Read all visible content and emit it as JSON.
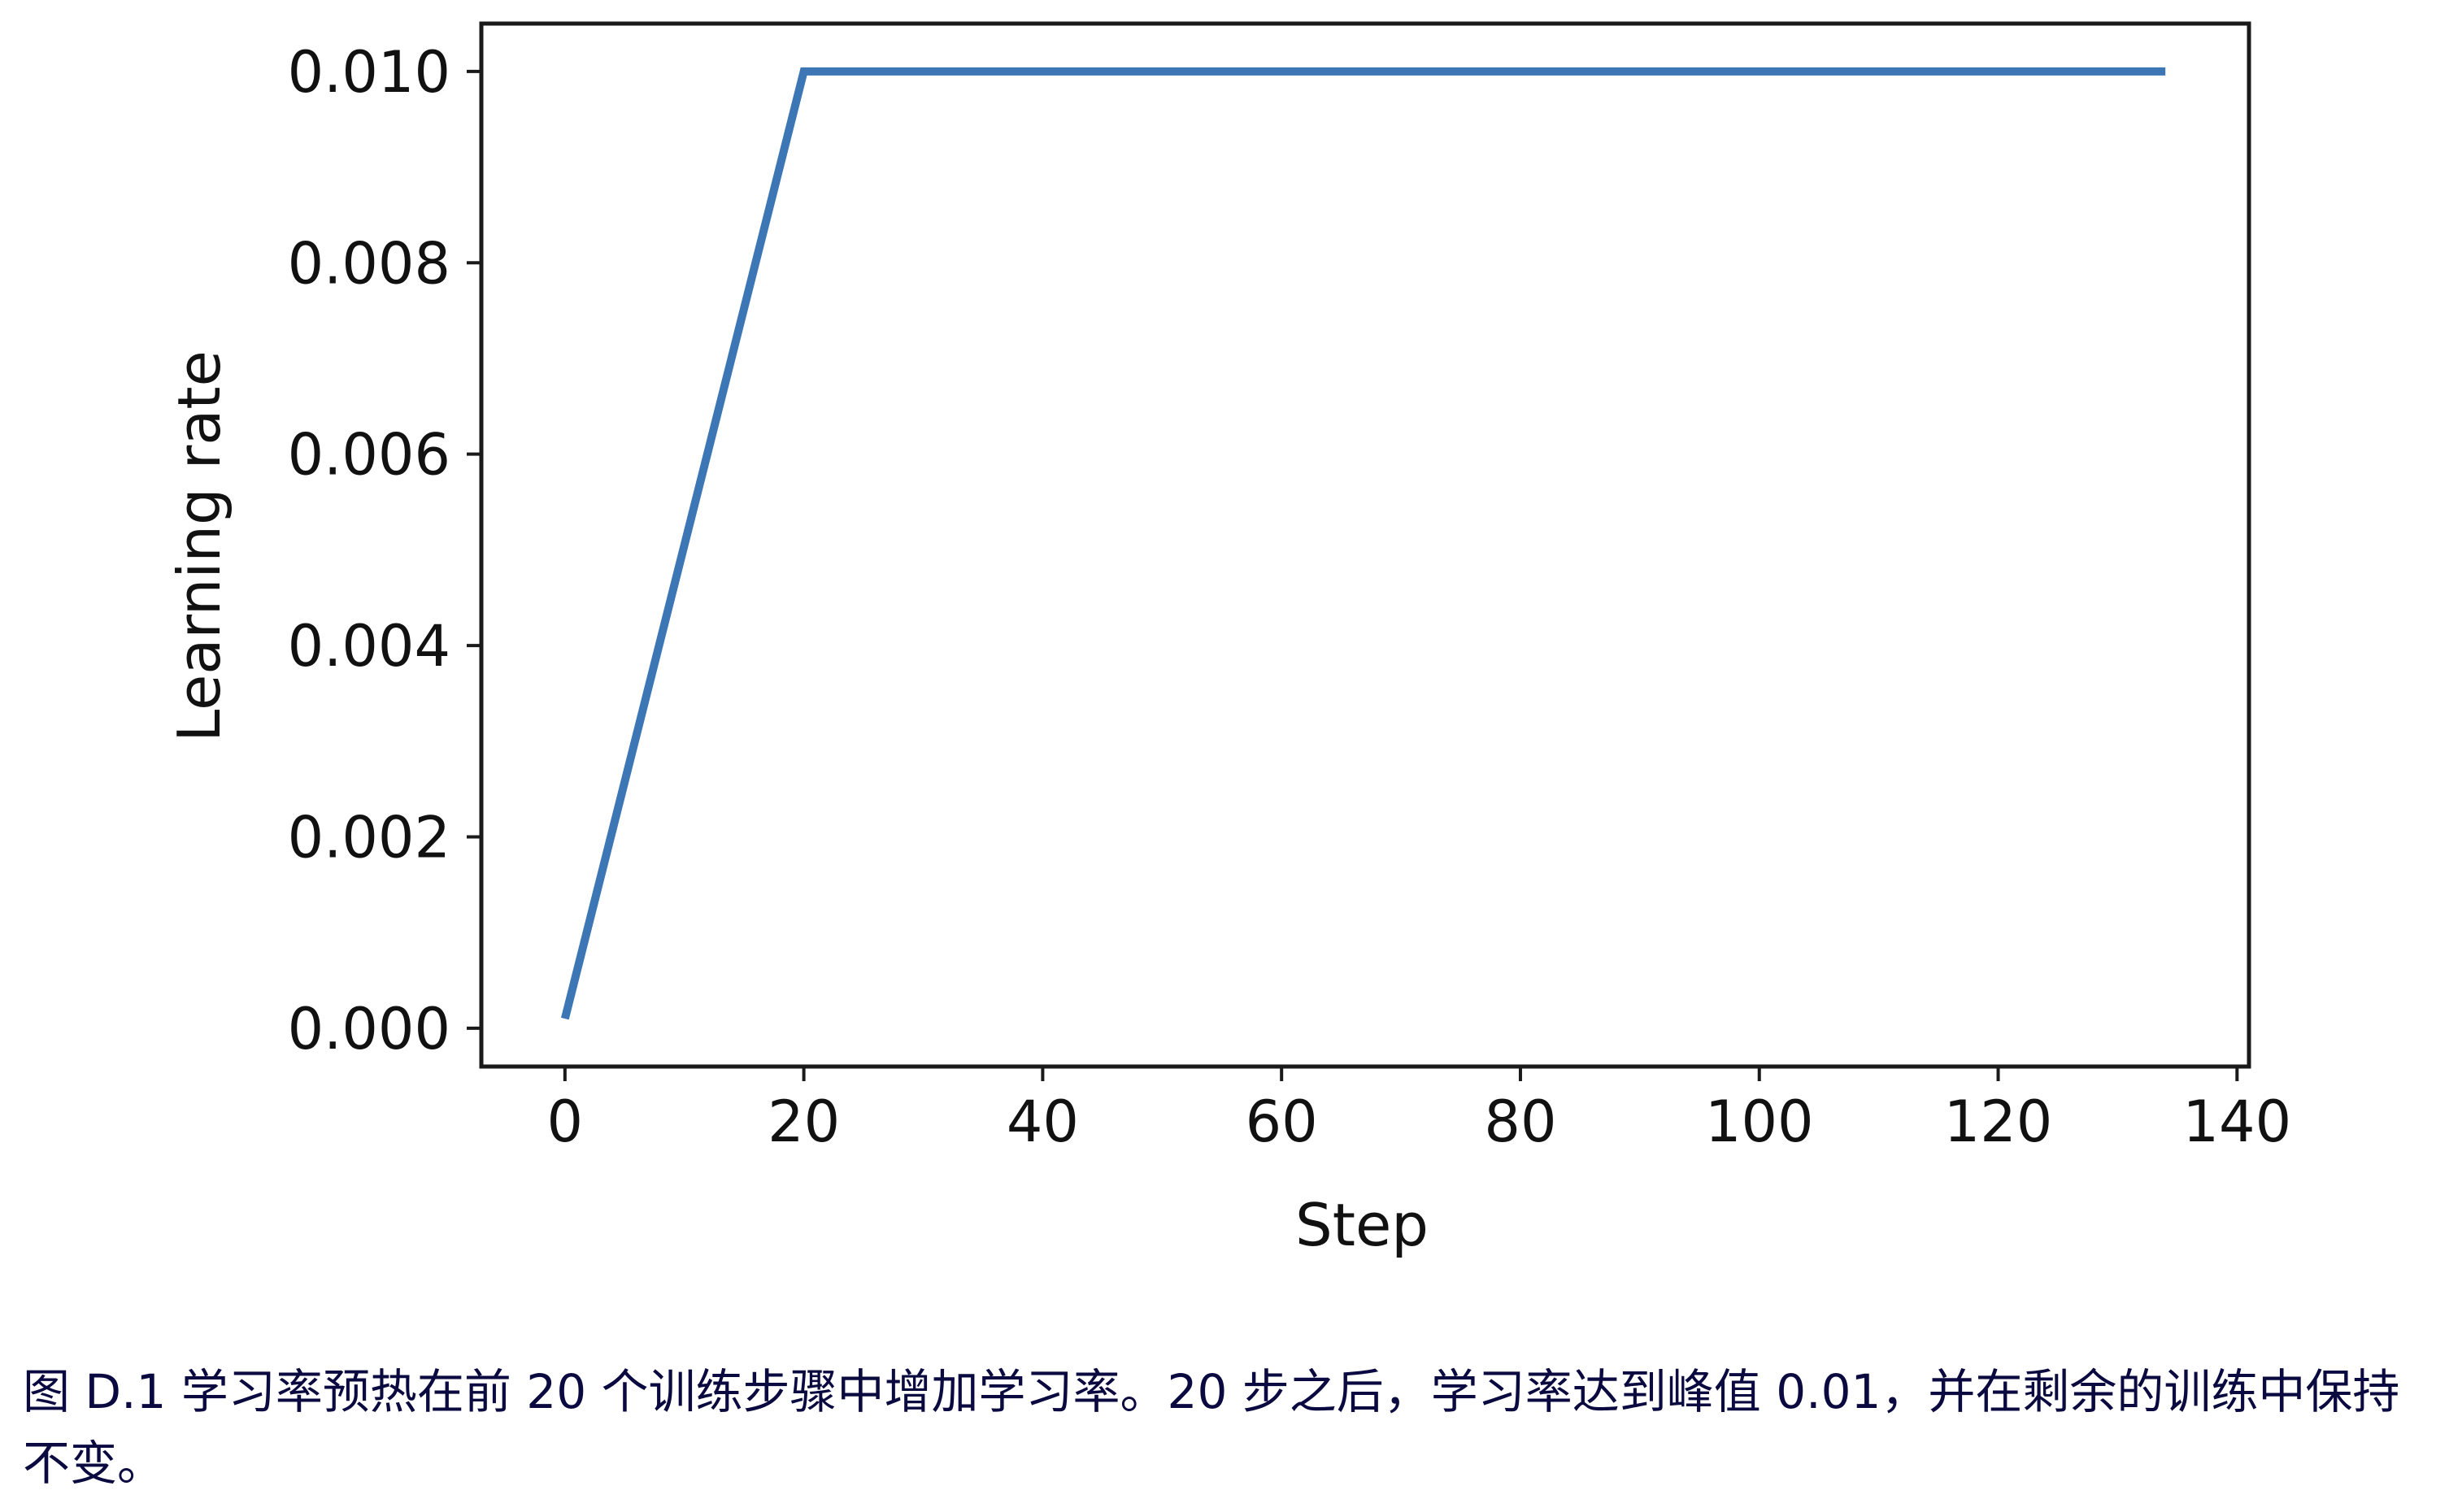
{
  "chart_data": {
    "type": "line",
    "title": "",
    "xlabel": "Step",
    "ylabel": "Learning rate",
    "xlim": [
      -7,
      141
    ],
    "ylim": [
      -0.0004,
      0.0105
    ],
    "xticks": [
      "0",
      "20",
      "40",
      "60",
      "80",
      "100",
      "120",
      "140"
    ],
    "yticks": [
      "0.000",
      "0.002",
      "0.004",
      "0.006",
      "0.008",
      "0.010"
    ],
    "grid": false,
    "legend": "none",
    "series": [
      {
        "x": [
          0,
          20,
          134
        ],
        "y": [
          0.0001,
          0.01,
          0.01
        ],
        "color": "#3d76b5"
      }
    ]
  },
  "caption": "图 D.1 学习率预热在前 20 个训练步骤中增加学习率。20 步之后，学习率达到峰值 0.01，并在剩余的训练中保持不变。"
}
